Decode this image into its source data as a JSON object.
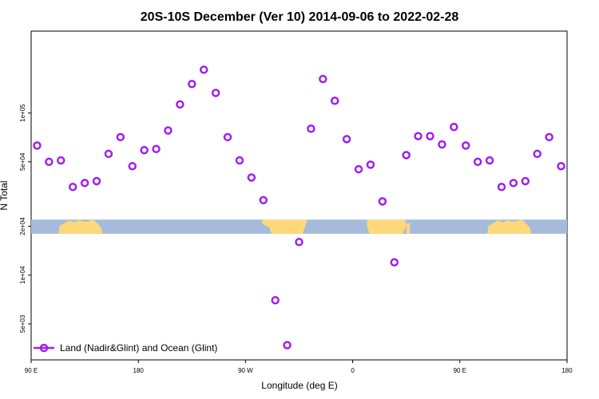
{
  "chart_data": {
    "type": "scatter",
    "title": "20S-10S December (Ver 10)   2014-09-06 to 2022-02-28",
    "xlabel": "Longitude (deg E)",
    "ylabel": "N Total",
    "x_scale": "linear",
    "y_scale": "log",
    "xlim": [
      90,
      540
    ],
    "ylim": [
      3000,
      320000
    ],
    "x_ticks": [
      {
        "value": 90,
        "label": "90 E"
      },
      {
        "value": 180,
        "label": "180"
      },
      {
        "value": 270,
        "label": "90 W"
      },
      {
        "value": 360,
        "label": "0"
      },
      {
        "value": 450,
        "label": "90 E"
      },
      {
        "value": 540,
        "label": "180"
      }
    ],
    "y_ticks": [
      {
        "value": 5000,
        "label": "5e+03"
      },
      {
        "value": 10000,
        "label": "1e+04"
      },
      {
        "value": 20000,
        "label": "2e+04"
      },
      {
        "value": 50000,
        "label": "5e+04"
      },
      {
        "value": 100000,
        "label": "1e+05"
      }
    ],
    "series": [
      {
        "name": "Land (Nadir&Glint) and Ocean (Glint)",
        "color": "#a020f0",
        "x": [
          95,
          105,
          115,
          125,
          135,
          145,
          155,
          165,
          175,
          185,
          195,
          205,
          215,
          225,
          235,
          245,
          255,
          265,
          275,
          285,
          295,
          305,
          315,
          325,
          335,
          345,
          355,
          365,
          375,
          385,
          395,
          405,
          415,
          425,
          435,
          445,
          455,
          465,
          475,
          485,
          495,
          505,
          515,
          525,
          535
        ],
        "y": [
          63000,
          50000,
          51000,
          35000,
          37000,
          38000,
          56000,
          71000,
          47000,
          59000,
          60000,
          78000,
          113000,
          151000,
          185000,
          133000,
          71000,
          51000,
          40000,
          29000,
          7000,
          3700,
          16000,
          80000,
          162000,
          119000,
          69000,
          45000,
          48000,
          28500,
          12000,
          55000,
          72000,
          72000,
          64000,
          82000,
          63000,
          50000,
          51000,
          35000,
          37000,
          38000,
          56000,
          71000,
          47000
        ]
      }
    ],
    "legend": {
      "placement": "bottom-left"
    },
    "grid": false,
    "background_map": {
      "y_range": [
        18000,
        22000
      ],
      "ocean_color": "#a6bbdb",
      "land_color": "#ffd87a"
    }
  }
}
